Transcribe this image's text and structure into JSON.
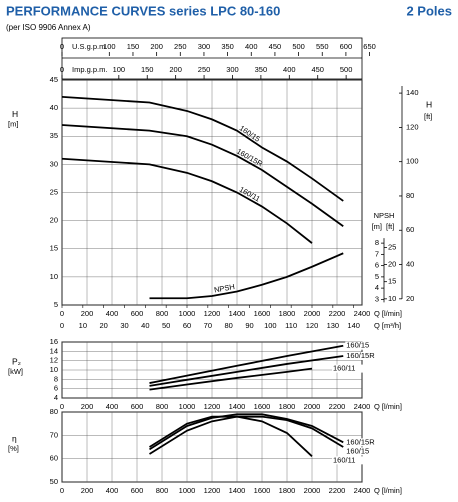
{
  "header": {
    "title": "PERFORMANCE CURVES series LPC 80-160",
    "poles": "2 Poles",
    "subtitle": "(per ISO 9906 Annex A)"
  },
  "chart_data": [
    {
      "type": "line",
      "ylabel": "H",
      "yunit": "[m]",
      "y2label": "H",
      "y2unit": "[ft]",
      "xlabel": "Q [l/min]",
      "x2label": "Q [m³/h]",
      "xlim": [
        0,
        2400
      ],
      "xticks": [
        0,
        200,
        400,
        600,
        800,
        1000,
        1200,
        1400,
        1600,
        1800,
        2000,
        2200,
        2400
      ],
      "ylim": [
        5,
        45
      ],
      "yticks": [
        5,
        10,
        15,
        20,
        25,
        30,
        35,
        40,
        45
      ],
      "yticks_ft": [
        20,
        40,
        60,
        80,
        100,
        120,
        140
      ],
      "xticks_m3h": [
        0,
        10,
        20,
        30,
        40,
        50,
        60,
        70,
        80,
        90,
        100,
        110,
        120,
        130,
        140
      ],
      "usgpm_label": "U.S.g.p.m.",
      "usgpm_ticks": [
        0,
        100,
        150,
        200,
        250,
        300,
        350,
        400,
        450,
        500,
        550,
        600,
        650
      ],
      "impgpm_label": "Imp.g.p.m.",
      "impgpm_ticks": [
        0,
        100,
        150,
        200,
        250,
        300,
        350,
        400,
        450,
        500
      ],
      "npsh_label": "NPSH",
      "npsh_unit_m": "[m]",
      "npsh_unit_ft": "[ft]",
      "y2lim": [
        2.5,
        22.5
      ],
      "y2ticks": [
        3,
        4,
        5,
        6,
        7,
        8
      ],
      "y2ticks_ft": [
        10,
        15,
        20,
        25
      ],
      "grid": true,
      "series": [
        {
          "name": "160/15",
          "color": "#000000",
          "x": [
            0,
            700,
            1000,
            1200,
            1400,
            1600,
            1800,
            2000,
            2250
          ],
          "values": [
            42,
            41,
            39.5,
            38,
            36,
            33,
            30.5,
            27.5,
            23.5
          ]
        },
        {
          "name": "160/15R",
          "color": "#000000",
          "x": [
            0,
            700,
            1000,
            1200,
            1400,
            1600,
            1800,
            2000,
            2250
          ],
          "values": [
            37,
            36,
            35,
            33.5,
            31.5,
            29,
            26,
            23,
            19
          ]
        },
        {
          "name": "160/11",
          "color": "#000000",
          "x": [
            0,
            700,
            1000,
            1200,
            1400,
            1600,
            1800,
            2000
          ],
          "values": [
            31,
            30,
            28.5,
            27,
            25,
            22.5,
            19.5,
            16
          ]
        },
        {
          "name": "NPSH",
          "axis": "y2",
          "color": "#000000",
          "x": [
            700,
            1000,
            1200,
            1400,
            1600,
            1800,
            2000,
            2250
          ],
          "values": [
            3.1,
            3.1,
            3.3,
            3.7,
            4.3,
            5.0,
            5.9,
            7.1
          ]
        }
      ]
    },
    {
      "type": "line",
      "ylabel": "P₂",
      "yunit": "[kW]",
      "xlabel": "Q [l/min]",
      "xlim": [
        0,
        2400
      ],
      "xticks": [
        0,
        200,
        400,
        600,
        800,
        1000,
        1200,
        1400,
        1600,
        1800,
        2000,
        2200,
        2400
      ],
      "ylim": [
        4,
        16
      ],
      "yticks": [
        4,
        6,
        8,
        10,
        12,
        14,
        16
      ],
      "grid": true,
      "series": [
        {
          "name": "160/15",
          "color": "#000000",
          "x": [
            700,
            1000,
            1400,
            1800,
            2250
          ],
          "values": [
            7.2,
            8.8,
            10.9,
            13.0,
            15.2
          ]
        },
        {
          "name": "160/15R",
          "color": "#000000",
          "x": [
            700,
            1000,
            1400,
            1800,
            2250
          ],
          "values": [
            6.6,
            7.9,
            9.6,
            11.3,
            13.0
          ]
        },
        {
          "name": "160/11",
          "color": "#000000",
          "x": [
            700,
            1000,
            1400,
            1800,
            2000
          ],
          "values": [
            5.8,
            6.9,
            8.3,
            9.6,
            10.3
          ]
        }
      ]
    },
    {
      "type": "line",
      "ylabel": "η",
      "yunit": "[%]",
      "xlabel": "Q [l/min]",
      "xlim": [
        0,
        2400
      ],
      "xticks": [
        0,
        200,
        400,
        600,
        800,
        1000,
        1200,
        1400,
        1600,
        1800,
        2000,
        2200,
        2400
      ],
      "ylim": [
        50,
        80
      ],
      "yticks": [
        50,
        60,
        70,
        80
      ],
      "grid": true,
      "series": [
        {
          "name": "160/15R",
          "color": "#000000",
          "x": [
            700,
            1000,
            1200,
            1400,
            1600,
            1800,
            2000,
            2250
          ],
          "values": [
            64,
            74,
            77.5,
            79,
            79,
            77,
            74,
            67
          ]
        },
        {
          "name": "160/15",
          "color": "#000000",
          "x": [
            700,
            1000,
            1200,
            1400,
            1600,
            1800,
            2000,
            2250
          ],
          "values": [
            62,
            72,
            76,
            78,
            78,
            76.5,
            73,
            65
          ]
        },
        {
          "name": "160/11",
          "color": "#000000",
          "x": [
            700,
            1000,
            1200,
            1400,
            1600,
            1800,
            2000
          ],
          "values": [
            65,
            75,
            78,
            78,
            76,
            71,
            61
          ]
        }
      ]
    }
  ]
}
